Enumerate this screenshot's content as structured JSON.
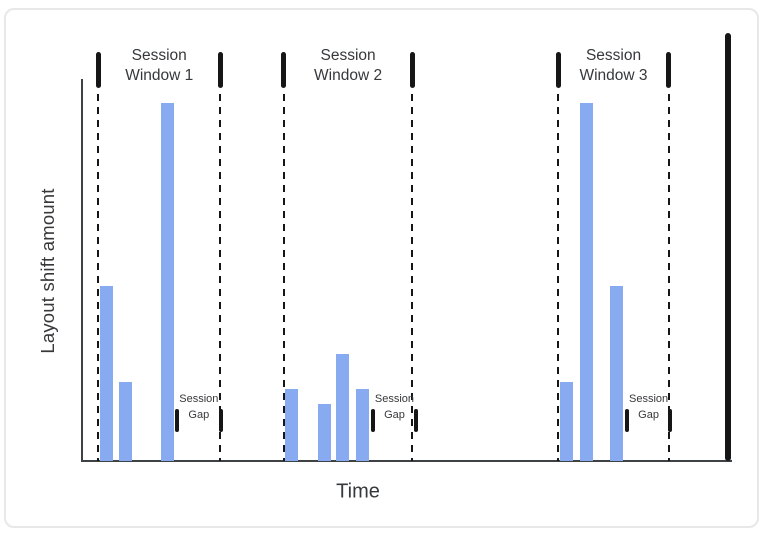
{
  "figure": {
    "card_border_color": "#e8e8e8",
    "background_color": "#ffffff",
    "bar_color": "#88aaf1",
    "marker_color": "#161616",
    "axis_color": "#3f4245",
    "label_color": "#36383b"
  },
  "chart_data": {
    "type": "bar",
    "xlabel": "Time",
    "ylabel": "Layout shift amount",
    "x_range": [
      0,
      1
    ],
    "ylim": [
      0,
      1
    ],
    "grid": false,
    "legend": "none",
    "axis_numeric_labels": false,
    "bars": [
      {
        "window": "Session Window 1",
        "t": 0.037,
        "value": 0.49
      },
      {
        "window": "Session Window 1",
        "t": 0.067,
        "value": 0.22
      },
      {
        "window": "Session Window 1",
        "t": 0.132,
        "value": 1.0
      },
      {
        "window": "Session Window 2",
        "t": 0.323,
        "value": 0.2
      },
      {
        "window": "Session Window 2",
        "t": 0.373,
        "value": 0.16
      },
      {
        "window": "Session Window 2",
        "t": 0.402,
        "value": 0.3
      },
      {
        "window": "Session Window 2",
        "t": 0.432,
        "value": 0.2
      },
      {
        "window": "Session Window 3",
        "t": 0.746,
        "value": 0.22
      },
      {
        "window": "Session Window 3",
        "t": 0.778,
        "value": 1.0
      },
      {
        "window": "Session Window 3",
        "t": 0.824,
        "value": 0.49
      }
    ],
    "windows": [
      {
        "label_lines": [
          "Session",
          "Window 1"
        ],
        "t_start": 0.025,
        "t_end": 0.213
      },
      {
        "label_lines": [
          "Session",
          "Window 2"
        ],
        "t_start": 0.311,
        "t_end": 0.509
      },
      {
        "label_lines": [
          "Session",
          "Window 3"
        ],
        "t_start": 0.734,
        "t_end": 0.904
      }
    ],
    "gaps": [
      {
        "label_lines": [
          "Session",
          "Gap"
        ],
        "t_start": 0.146,
        "t_end": 0.214
      },
      {
        "label_lines": [
          "Session",
          "Gap"
        ],
        "t_start": 0.448,
        "t_end": 0.515
      },
      {
        "label_lines": [
          "Session",
          "Gap"
        ],
        "t_start": 0.84,
        "t_end": 0.906
      }
    ],
    "timeline_end_marker_t": 0.995
  }
}
